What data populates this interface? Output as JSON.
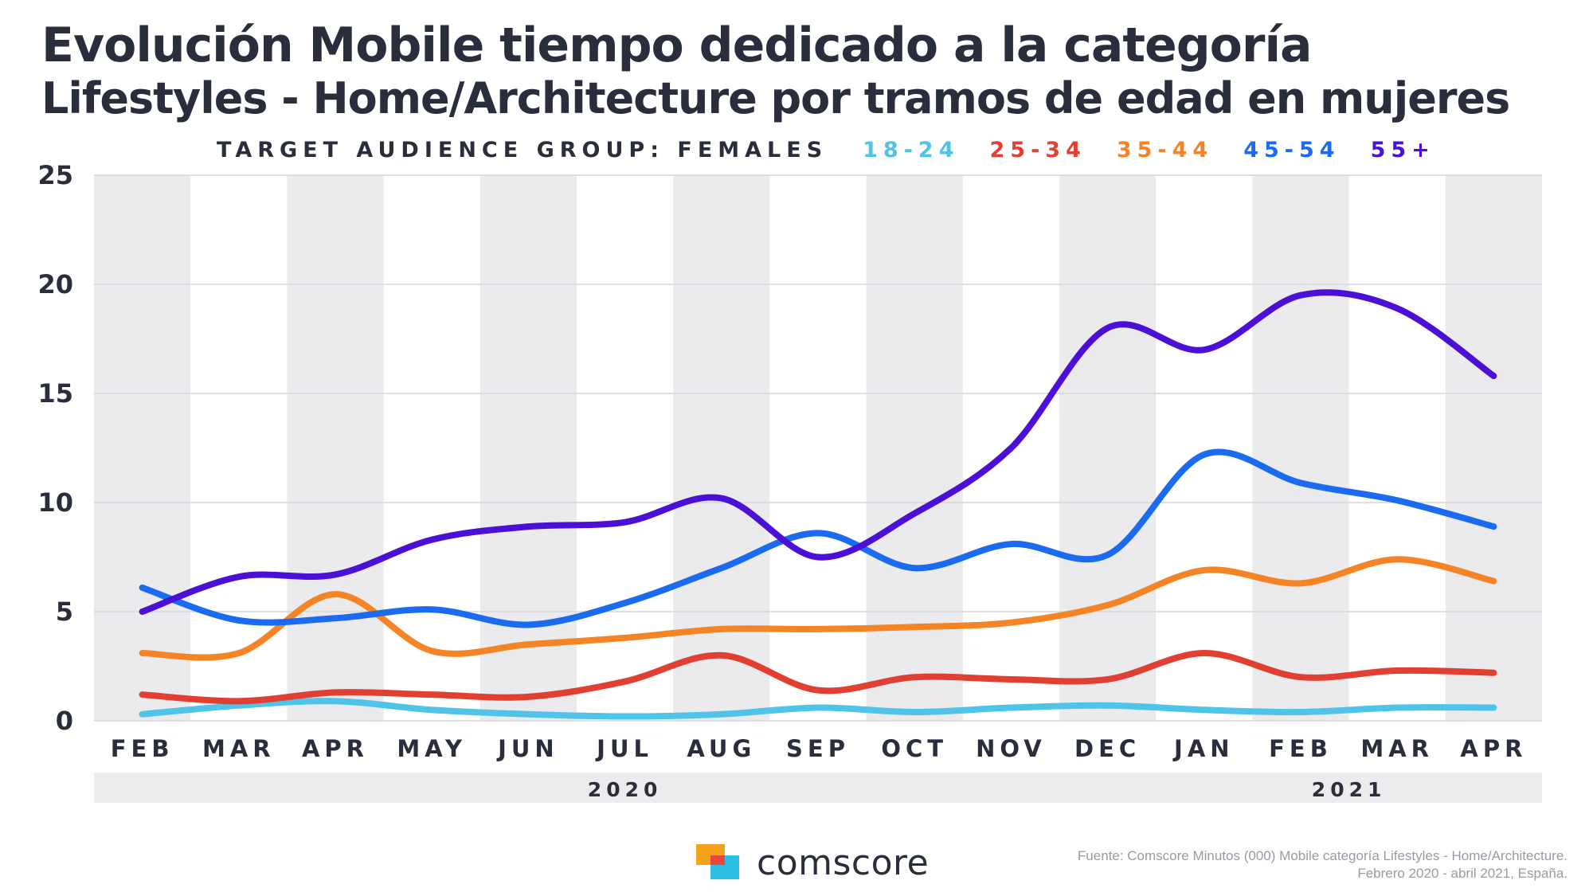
{
  "title_line1": "Evolución Mobile tiempo dedicado a la categoría",
  "title_line2": "Lifestyles - Home/Architecture por tramos de edad en mujeres",
  "legend": {
    "title": "TARGET AUDIENCE GROUP: FEMALES",
    "placement": "top"
  },
  "brand": {
    "name": "comscore",
    "icon": "comscore-logo-icon",
    "colors": [
      "#f6a11c",
      "#e8473c",
      "#2ec0e4"
    ]
  },
  "source": {
    "line1": "Fuente: Comscore Minutos (000) Mobile categoría Lifestyles - Home/Architecture.",
    "line2": "Febrero 2020 - abril 2021, España."
  },
  "chart_data": {
    "type": "line",
    "categories": [
      "FEB",
      "MAR",
      "APR",
      "MAY",
      "JUN",
      "JUL",
      "AUG",
      "SEP",
      "OCT",
      "NOV",
      "DEC",
      "JAN",
      "FEB",
      "MAR",
      "APR"
    ],
    "year_groups": [
      {
        "label": "2020",
        "start": 0,
        "end": 10
      },
      {
        "label": "2021",
        "start": 11,
        "end": 14
      }
    ],
    "yticks": [
      "0",
      "5",
      "10",
      "15",
      "20",
      "25"
    ],
    "ylim": [
      0,
      25
    ],
    "grid": true,
    "xlabel": "",
    "ylabel": "",
    "series": [
      {
        "name": "18-24",
        "color": "#4fc3e8",
        "values": [
          0.3,
          0.7,
          0.9,
          0.5,
          0.3,
          0.2,
          0.3,
          0.6,
          0.4,
          0.6,
          0.7,
          0.5,
          0.4,
          0.6,
          0.6
        ]
      },
      {
        "name": "25-34",
        "color": "#e23f33",
        "values": [
          1.2,
          0.9,
          1.3,
          1.2,
          1.1,
          1.8,
          3.0,
          1.4,
          2.0,
          1.9,
          1.9,
          3.1,
          2.0,
          2.3,
          2.2
        ]
      },
      {
        "name": "35-44",
        "color": "#f58427",
        "values": [
          3.1,
          3.1,
          5.8,
          3.2,
          3.5,
          3.8,
          4.2,
          4.2,
          4.3,
          4.5,
          5.3,
          6.9,
          6.3,
          7.4,
          6.4
        ]
      },
      {
        "name": "45-54",
        "color": "#1a6bf0",
        "values": [
          6.1,
          4.6,
          4.7,
          5.1,
          4.4,
          5.4,
          7.0,
          8.6,
          7.0,
          8.1,
          7.6,
          12.2,
          10.9,
          10.1,
          8.9
        ]
      },
      {
        "name": "55+",
        "color": "#4b0fd6",
        "values": [
          5.0,
          6.6,
          6.7,
          8.3,
          8.9,
          9.1,
          10.2,
          7.5,
          9.5,
          12.5,
          18.0,
          17.0,
          19.5,
          18.9,
          15.8
        ]
      }
    ]
  }
}
